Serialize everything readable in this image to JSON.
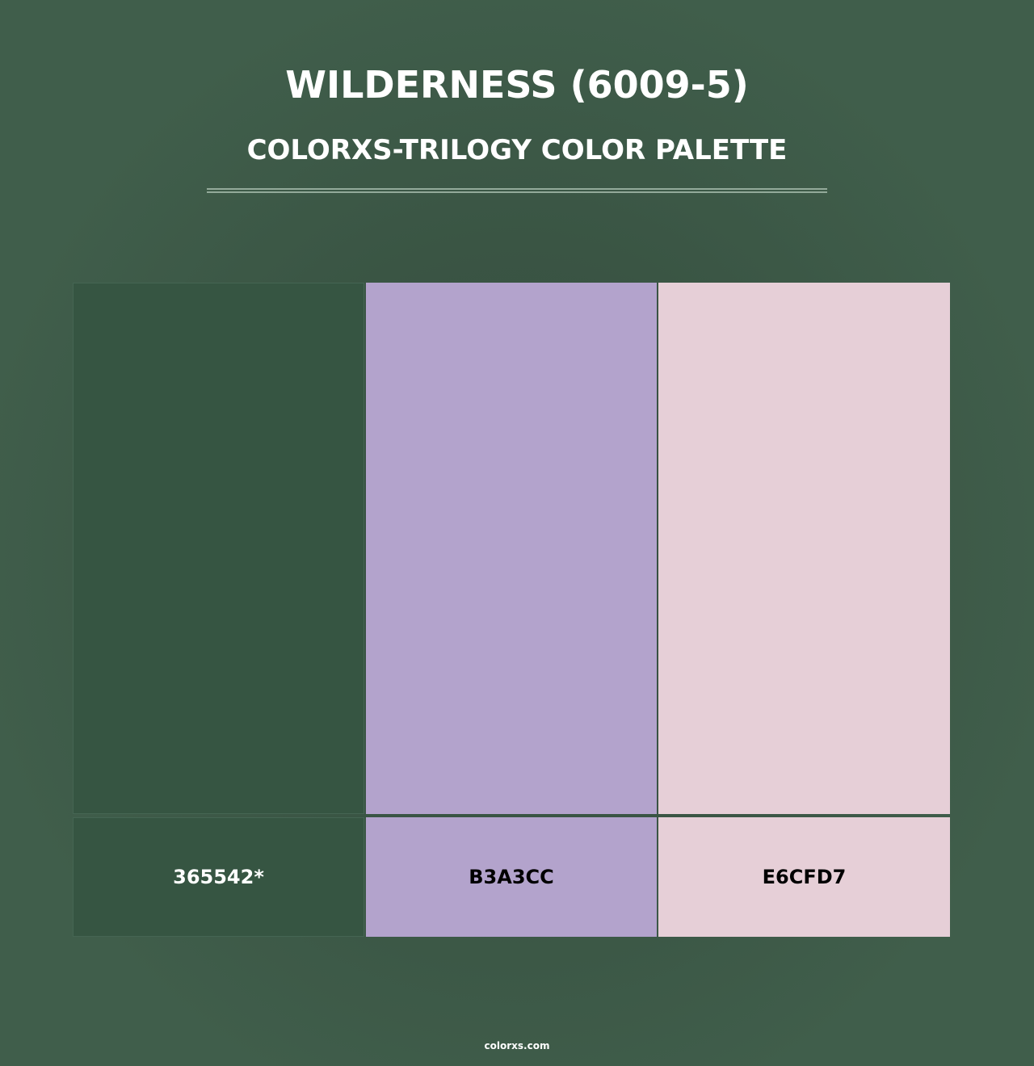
{
  "header": {
    "title": "WILDERNESS (6009-5)",
    "subtitle": "COLORXS-TRILOGY COLOR PALETTE"
  },
  "swatches": [
    {
      "hex": "365542*",
      "color": "#365542",
      "text_color": "#ffffff"
    },
    {
      "hex": "B3A3CC",
      "color": "#b3a3cc",
      "text_color": "#000000"
    },
    {
      "hex": "E6CFD7",
      "color": "#e6cfd7",
      "text_color": "#000000"
    }
  ],
  "footer": {
    "brand": "colorxs.com"
  }
}
